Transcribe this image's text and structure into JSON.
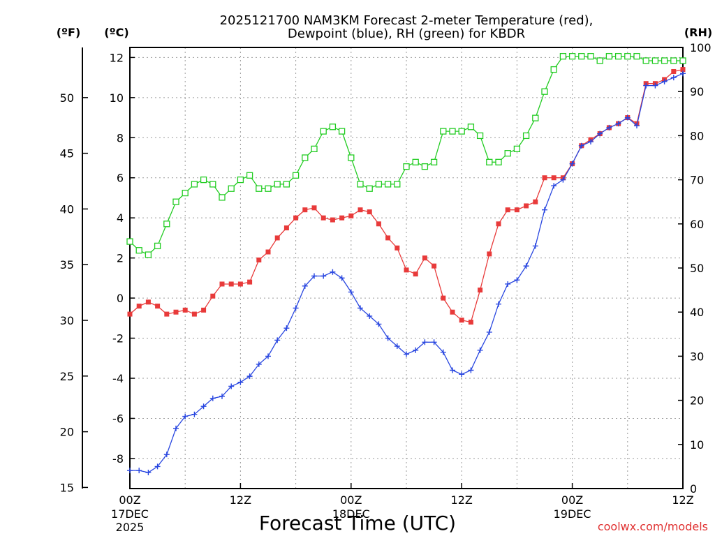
{
  "chart_data": {
    "type": "line",
    "title_line1": "2025121700 NAM3KM Forecast 2-meter Temperature (red),",
    "title_line2": "Dewpoint (blue), RH (green) for KBDR",
    "xlabel": "Forecast Time (UTC)",
    "credit": "coolwx.com/models",
    "units": {
      "fahrenheit": "(ºF)",
      "celsius": "(ºC)",
      "rh": "(RH)"
    },
    "colors": {
      "temperature": "#e83a3a",
      "dewpoint": "#2846e0",
      "rh": "#22cc22"
    },
    "x_range_hours": [
      0,
      60
    ],
    "y_celsius_range": [
      -9.5,
      12.5
    ],
    "rh_range": [
      0,
      100
    ],
    "x_ticks": [
      {
        "h": 0,
        "l1": "00Z",
        "l2": "17DEC",
        "l3": "2025"
      },
      {
        "h": 12,
        "l1": "12Z",
        "l2": "",
        "l3": ""
      },
      {
        "h": 24,
        "l1": "00Z",
        "l2": "18DEC",
        "l3": ""
      },
      {
        "h": 36,
        "l1": "12Z",
        "l2": "",
        "l3": ""
      },
      {
        "h": 48,
        "l1": "00Z",
        "l2": "19DEC",
        "l3": ""
      },
      {
        "h": 60,
        "l1": "12Z",
        "l2": "",
        "l3": ""
      }
    ],
    "y_celsius_ticks": [
      "-8",
      "-6",
      "-4",
      "-2",
      "0",
      "2",
      "4",
      "6",
      "8",
      "10",
      "12"
    ],
    "y_fahrenheit_ticks": [
      "15",
      "20",
      "25",
      "30",
      "35",
      "40",
      "45",
      "50"
    ],
    "y_rh_ticks": [
      "0",
      "10",
      "20",
      "30",
      "40",
      "50",
      "60",
      "70",
      "80",
      "90",
      "100"
    ],
    "x_hours": [
      0,
      1,
      2,
      3,
      4,
      5,
      6,
      7,
      8,
      9,
      10,
      11,
      12,
      13,
      14,
      15,
      16,
      17,
      18,
      19,
      20,
      21,
      22,
      23,
      24,
      25,
      26,
      27,
      28,
      29,
      30,
      31,
      32,
      33,
      34,
      35,
      36,
      37,
      38,
      39,
      40,
      41,
      42,
      43,
      44,
      45,
      46,
      47,
      48,
      49,
      50,
      51,
      52,
      53,
      54,
      55,
      56,
      57,
      58,
      59,
      60
    ],
    "series": [
      {
        "name": "2-meter Temperature",
        "key": "temperature",
        "values": [
          -0.8,
          -0.4,
          -0.2,
          -0.4,
          -0.8,
          -0.7,
          -0.6,
          -0.8,
          -0.6,
          0.1,
          0.7,
          0.7,
          0.7,
          0.8,
          1.9,
          2.3,
          3.0,
          3.5,
          4.0,
          4.4,
          4.5,
          4.0,
          3.9,
          4.0,
          4.1,
          4.4,
          4.3,
          3.7,
          3.0,
          2.5,
          1.4,
          1.2,
          2.0,
          1.6,
          0.0,
          -0.7,
          -1.1,
          -1.2,
          0.4,
          2.2,
          3.7,
          4.4,
          4.4,
          4.6,
          4.8,
          6.0,
          6.0,
          6.0,
          6.7,
          7.6,
          7.9,
          8.2,
          8.5,
          8.7,
          9.0,
          8.7,
          10.7,
          10.7,
          10.9,
          11.3,
          11.4
        ]
      },
      {
        "name": "Dewpoint",
        "key": "dewpoint",
        "values": [
          -8.6,
          -8.6,
          -8.7,
          -8.4,
          -7.8,
          -6.5,
          -5.9,
          -5.8,
          -5.4,
          -5.0,
          -4.9,
          -4.4,
          -4.2,
          -3.9,
          -3.3,
          -2.9,
          -2.1,
          -1.5,
          -0.5,
          0.6,
          1.1,
          1.1,
          1.3,
          1.0,
          0.3,
          -0.5,
          -0.9,
          -1.3,
          -2.0,
          -2.4,
          -2.8,
          -2.6,
          -2.2,
          -2.2,
          -2.7,
          -3.6,
          -3.8,
          -3.6,
          -2.6,
          -1.7,
          -0.3,
          0.7,
          0.9,
          1.6,
          2.6,
          4.4,
          5.6,
          5.9,
          6.7,
          7.6,
          7.8,
          8.2,
          8.5,
          8.7,
          9.0,
          8.6,
          10.6,
          10.6,
          10.8,
          11.0,
          11.2
        ]
      },
      {
        "name": "RH",
        "key": "rh",
        "values": [
          56,
          54,
          53,
          55,
          60,
          65,
          67,
          69,
          70,
          69,
          66,
          68,
          70,
          71,
          68,
          68,
          69,
          69,
          71,
          75,
          77,
          81,
          82,
          81,
          75,
          69,
          68,
          69,
          69,
          69,
          73,
          74,
          73,
          74,
          81,
          81,
          81,
          82,
          80,
          74,
          74,
          76,
          77,
          80,
          84,
          90,
          95,
          98,
          98,
          98,
          98,
          97,
          98,
          98,
          98,
          98,
          97,
          97,
          97,
          97,
          97
        ]
      }
    ]
  }
}
